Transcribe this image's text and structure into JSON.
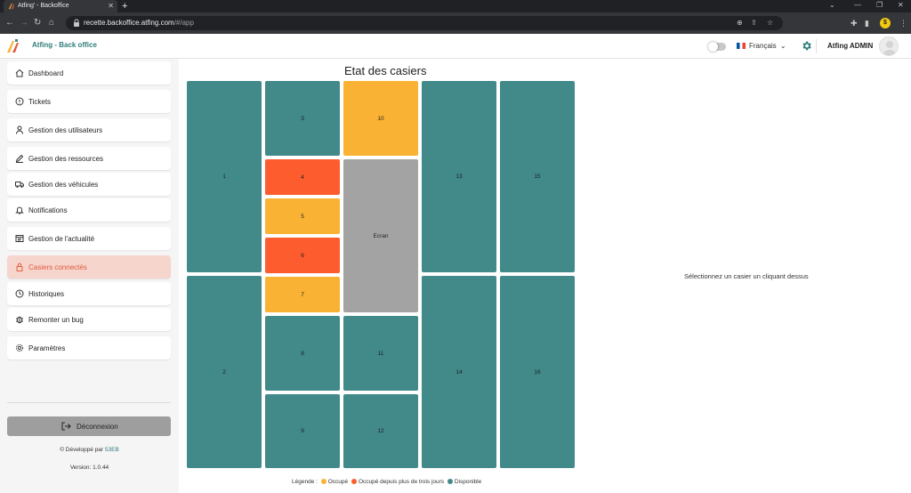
{
  "browser": {
    "tab_title": "Atfing' - Backoffice",
    "url_host": "recette.backoffice.atfing.com",
    "url_path": "/#/app"
  },
  "header": {
    "app_title": "Atfing - Back office",
    "language": "Français",
    "user_name": "Atfing ADMIN"
  },
  "sidebar": {
    "items": [
      {
        "label": "Dashboard",
        "icon": "home-icon"
      },
      {
        "label": "Tickets",
        "icon": "info-icon"
      },
      {
        "label": "Gestion des utilisateurs",
        "icon": "user-icon"
      },
      {
        "label": "Gestion des ressources",
        "icon": "pencil-icon"
      },
      {
        "label": "Gestion des véhicules",
        "icon": "truck-icon"
      },
      {
        "label": "Notifications",
        "icon": "bell-icon"
      },
      {
        "label": "Gestion de l'actualité",
        "icon": "news-icon"
      },
      {
        "label": "Casiers connectés",
        "icon": "locker-icon",
        "active": true
      },
      {
        "label": "Historiques",
        "icon": "clock-icon"
      },
      {
        "label": "Remonter un bug",
        "icon": "bug-icon"
      },
      {
        "label": "Paramètres",
        "icon": "settings-icon"
      }
    ],
    "logout_label": "Déconnexion",
    "developed_by_prefix": "Développé par",
    "developer": "53EB",
    "version": "Version: 1.0.44"
  },
  "main": {
    "title": "Etat des casiers",
    "placeholder": "Sélectionnez un casier un cliquant dessus",
    "lockers": [
      {
        "label": "1",
        "status": "available"
      },
      {
        "label": "2",
        "status": "available"
      },
      {
        "label": "3",
        "status": "available"
      },
      {
        "label": "4",
        "status": "occupied_3days"
      },
      {
        "label": "5",
        "status": "occupied"
      },
      {
        "label": "6",
        "status": "occupied_3days"
      },
      {
        "label": "7",
        "status": "occupied"
      },
      {
        "label": "8",
        "status": "available"
      },
      {
        "label": "9",
        "status": "available"
      },
      {
        "label": "10",
        "status": "occupied"
      },
      {
        "label": "Ecran",
        "status": "screen"
      },
      {
        "label": "11",
        "status": "available"
      },
      {
        "label": "12",
        "status": "available"
      },
      {
        "label": "13",
        "status": "available"
      },
      {
        "label": "14",
        "status": "available"
      },
      {
        "label": "15",
        "status": "available"
      },
      {
        "label": "16",
        "status": "available"
      }
    ],
    "legend": {
      "prefix": "Légende :",
      "occupied": "Occupé",
      "occupied_3days": "Occupé depuis plus de trois jours",
      "available": "Disponible"
    }
  },
  "colors": {
    "available": "#42898a",
    "occupied": "#f9b233",
    "occupied_3days": "#fd5c2e",
    "screen": "#a3a3a3",
    "accent": "#e05a3c",
    "brand_teal": "#2e7d7a"
  }
}
